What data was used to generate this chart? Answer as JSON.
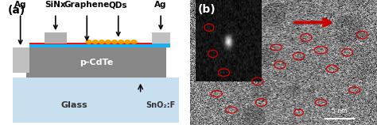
{
  "panel_a_label": "(a)",
  "panel_b_label": "(b)",
  "bg_color": "#ffffff",
  "glass_color": "#c8dff0",
  "cdte_color": "#878787",
  "sinx_color": "#b0b0b0",
  "graphene_color": "#1ab0f0",
  "qd_color": "#f0a000",
  "ag_color": "#c0c0c0",
  "red_line_color": "#ee1111",
  "scale_bar_label": "5 nm",
  "layer_labels": [
    "Ag",
    "SiNx",
    "Graphene",
    "QDs",
    "Ag"
  ],
  "cdte_label": "p-CdTe",
  "glass_label": "Glass",
  "sno2_label": "SnO₂:F",
  "arrow_color": "#000000",
  "red_arrow_color": "#cc0000",
  "inset_bg": "#111111"
}
